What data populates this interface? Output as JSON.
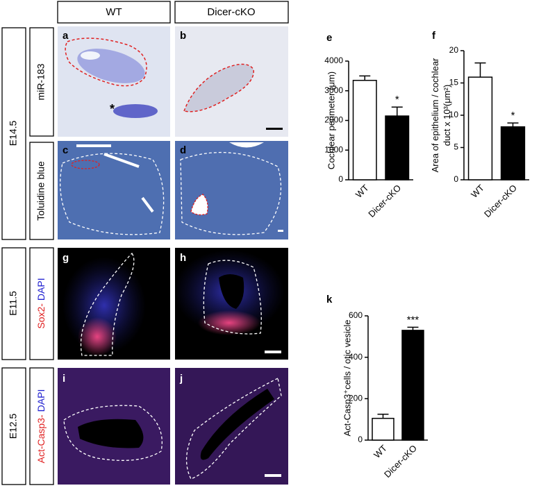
{
  "headers": [
    "WT",
    "Dicer-cKO"
  ],
  "stages": [
    "E14.5",
    "E11.5",
    "E12.5"
  ],
  "stains": {
    "mir": "miR-183",
    "toluidine": "Toluidine blue",
    "sox2": [
      "Sox2-",
      "DAPI"
    ],
    "casp3": [
      "Act-Casp3-",
      "DAPI"
    ]
  },
  "panels": {
    "a": "a",
    "b": "b",
    "c": "c",
    "d": "d",
    "g": "g",
    "h": "h",
    "i": "i",
    "j": "j",
    "star": "*"
  },
  "chart_data": [
    {
      "type": "bar",
      "letter": "e",
      "y_label": "Cochlear perimeter (μm)",
      "categories": [
        "WT",
        "Dicer-cKO"
      ],
      "values": [
        3350,
        2150
      ],
      "errors": [
        150,
        300
      ],
      "significance": [
        null,
        "*"
      ],
      "colors": [
        "#ffffff",
        "#000000"
      ],
      "ylim": [
        0,
        4000
      ],
      "yticks": [
        0,
        1000,
        2000,
        3000,
        4000
      ]
    },
    {
      "type": "bar",
      "letter": "f",
      "y_label": [
        "Area of epithelium / cochlear",
        "duct x 10³(μm²)"
      ],
      "categories": [
        "WT",
        "Dicer-cKO"
      ],
      "values": [
        15.9,
        8.2
      ],
      "errors": [
        2.2,
        0.6
      ],
      "significance": [
        null,
        "*"
      ],
      "colors": [
        "#ffffff",
        "#000000"
      ],
      "ylim": [
        0,
        20
      ],
      "yticks": [
        0,
        5,
        10,
        15,
        20
      ]
    },
    {
      "type": "bar",
      "letter": "k",
      "y_label": "Act-Casp3⁺cells / otic vesicle",
      "categories": [
        "WT",
        "Dicer-cKO"
      ],
      "values": [
        105,
        530
      ],
      "errors": [
        20,
        15
      ],
      "significance": [
        null,
        "***"
      ],
      "colors": [
        "#ffffff",
        "#000000"
      ],
      "ylim": [
        0,
        600
      ],
      "yticks": [
        0,
        200,
        400,
        600
      ]
    }
  ]
}
